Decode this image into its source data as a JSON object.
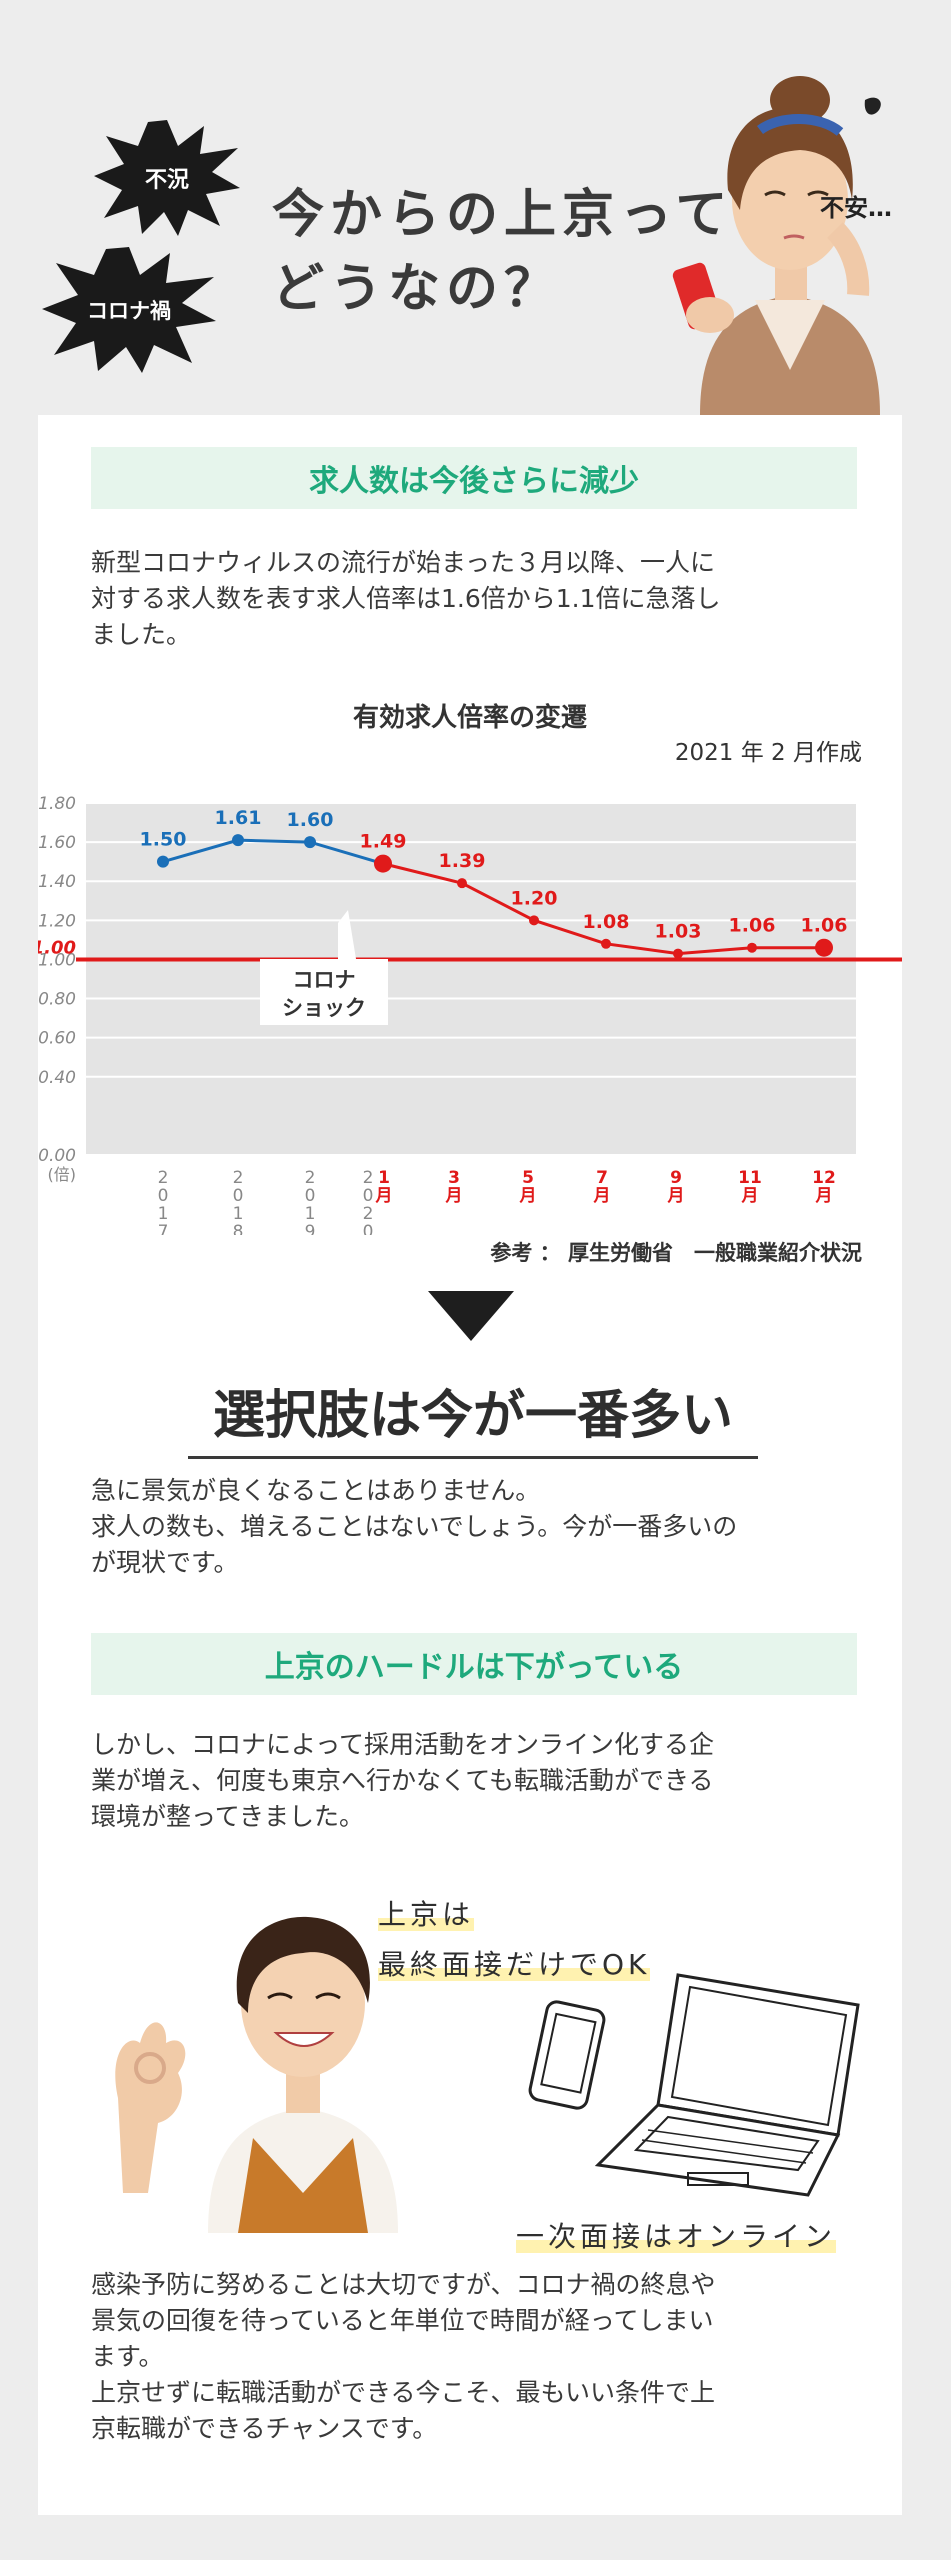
{
  "header": {
    "burst1": "不況",
    "burst2": "コロナ禍",
    "headline_line1": "今からの上京って",
    "headline_line2": "どうなの？",
    "anxious": "不安…"
  },
  "section1": {
    "title": "求人数は今後さらに減少",
    "para_lines": [
      "新型コロナウィルスの流行が始まった３月以降、一人に",
      "対する求人数を表す求人倍率は1.6倍から1.1倍に急落し",
      "ました。"
    ]
  },
  "chart_data": {
    "type": "line",
    "title": "有効求人倍率の変遷",
    "note": "2021 年 2 月作成",
    "source": "参考 ： 厚生労働省　一般職業紹介状況",
    "yunit": "(倍)",
    "ylim": [
      0,
      1.8
    ],
    "yticks": [
      "1.80",
      "1.60",
      "1.40",
      "1.20",
      "1.00",
      "0.80",
      "0.60",
      "0.40",
      "0.00"
    ],
    "yticks_all": [
      1.8,
      1.6,
      1.4,
      1.2,
      1.0,
      0.8,
      0.6,
      0.4,
      0.0
    ],
    "x_labels": [
      {
        "label": "2\n0\n1\n7",
        "color": "gray"
      },
      {
        "label": "2\n0\n1\n8",
        "color": "gray"
      },
      {
        "label": "2\n0\n1\n9",
        "color": "gray"
      },
      {
        "label": "2\n0\n2\n0",
        "color": "gray"
      },
      {
        "label": "1\n月",
        "color": "red"
      },
      {
        "label": "3\n月",
        "color": "red"
      },
      {
        "label": "5\n月",
        "color": "red"
      },
      {
        "label": "7\n月",
        "color": "red"
      },
      {
        "label": "9\n月",
        "color": "red"
      },
      {
        "label": "11\n月",
        "color": "red"
      },
      {
        "label": "12\n月",
        "color": "red"
      }
    ],
    "series": [
      {
        "values": [
          1.5,
          1.61,
          1.6,
          1.49
        ],
        "labels": [
          "1.50",
          "1.61",
          "1.60",
          "1.49"
        ],
        "color": "#1a6fb8"
      },
      {
        "values": [
          1.49,
          1.39,
          1.2,
          1.08,
          1.03,
          1.06,
          1.06
        ],
        "labels": [
          "1.49",
          "1.39",
          "1.20",
          "1.08",
          "1.03",
          "1.06",
          "1.06"
        ],
        "color": "#e01a1a"
      }
    ],
    "reference_line": {
      "value": 1.0,
      "label": "1.00",
      "color": "#e01a1a"
    },
    "annotation": [
      "コロナ",
      "ショック"
    ]
  },
  "main_heading": "選択肢は今が一番多い",
  "section2": {
    "para_lines": [
      "急に景気が良くなることはありません。",
      "求人の数も、増えることはないでしょう。今が一番多いの",
      "が現状です。"
    ]
  },
  "section3": {
    "title": "上京のハードルは下がっている",
    "para_lines": [
      "しかし、コロナによって採用活動をオンライン化する企",
      "業が増え、何度も東京へ行かなくても転職活動ができる",
      "環境が整ってきました。"
    ],
    "hand1_line1": "上京は",
    "hand1_line2": "最終面接だけでOK",
    "hand2": "一次面接はオンライン"
  },
  "section4": {
    "para_lines": [
      "感染予防に努めることは大切ですが、コロナ禍の終息や",
      "景気の回復を待っていると年単位で時間が経ってしまい",
      "ます。",
      "上京せずに転職活動ができる今こそ、最もいい条件で上",
      "京転職ができるチャンスです。"
    ]
  }
}
